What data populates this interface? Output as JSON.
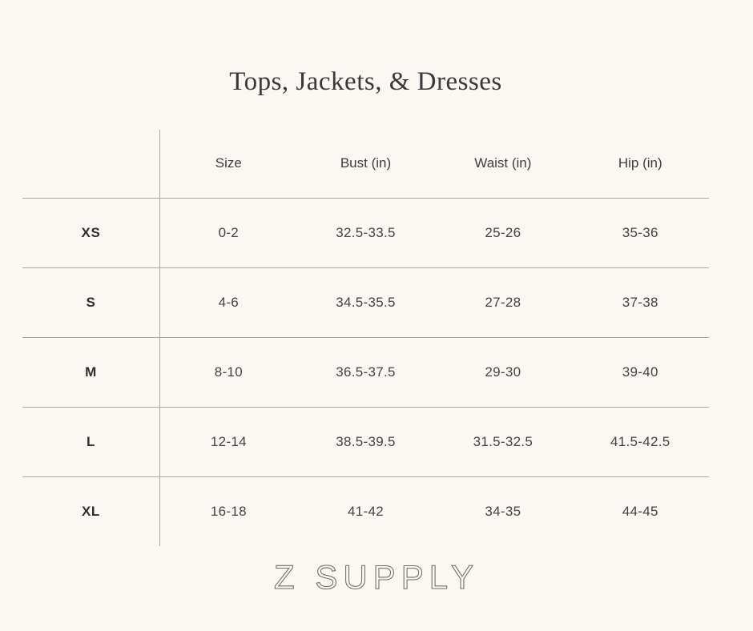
{
  "title": "Tops, Jackets, & Dresses",
  "brand": "Z SUPPLY",
  "colors": {
    "background": "#faf8f2",
    "title_text": "#39383a",
    "table_text": "#434343",
    "rule_line": "#a9a6a0",
    "brand_text": "#6e6b66"
  },
  "chart_data": {
    "type": "table",
    "title": "Tops, Jackets, & Dresses",
    "columns": [
      "Size",
      "Bust (in)",
      "Waist (in)",
      "Hip (in)"
    ],
    "rows": [
      {
        "label": "XS",
        "size": "0-2",
        "bust": "32.5-33.5",
        "waist": "25-26",
        "hip": "35-36"
      },
      {
        "label": "S",
        "size": "4-6",
        "bust": "34.5-35.5",
        "waist": "27-28",
        "hip": "37-38"
      },
      {
        "label": "M",
        "size": "8-10",
        "bust": "36.5-37.5",
        "waist": "29-30",
        "hip": "39-40"
      },
      {
        "label": "L",
        "size": "12-14",
        "bust": "38.5-39.5",
        "waist": "31.5-32.5",
        "hip": "41.5-42.5"
      },
      {
        "label": "XL",
        "size": "16-18",
        "bust": "41-42",
        "waist": "34-35",
        "hip": "44-45"
      }
    ],
    "layout": {
      "grid": "horizontal rules between rows, vertical rule after label column, no outer border"
    }
  }
}
